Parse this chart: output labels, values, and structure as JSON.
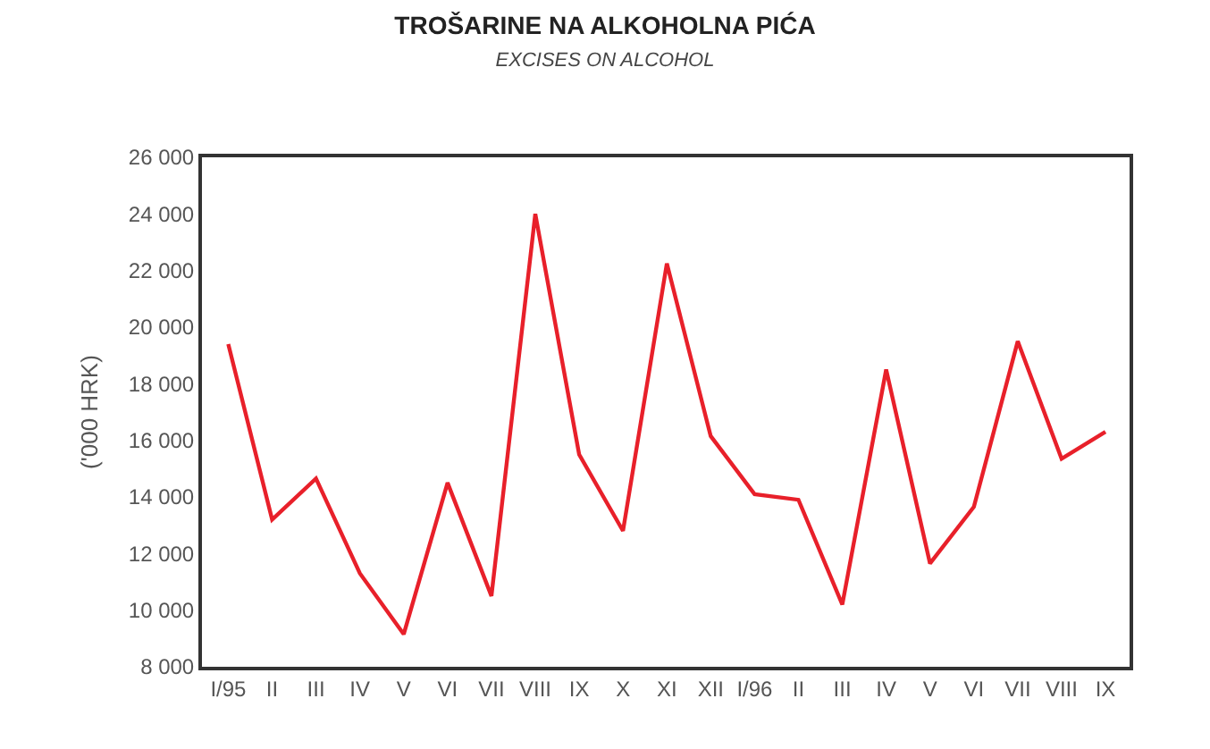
{
  "chart_data": {
    "type": "line",
    "title": "TROŠARINE NA ALKOHOLNA PIĆA",
    "subtitle": "EXCISES ON ALCOHOL",
    "ylabel": "('000 HRK)",
    "categories": [
      "I/95",
      "II",
      "III",
      "IV",
      "V",
      "VI",
      "VII",
      "VIII",
      "IX",
      "X",
      "XI",
      "XII",
      "I/96",
      "II",
      "III",
      "IV",
      "V",
      "VI",
      "VII",
      "VIII",
      "IX"
    ],
    "series": [
      {
        "color": "#e8202a",
        "values": [
          19400,
          13200,
          14650,
          11300,
          9150,
          14500,
          10500,
          24000,
          15500,
          12800,
          22250,
          16150,
          14100,
          13900,
          10200,
          18500,
          11650,
          13650,
          19500,
          15350,
          16300
        ]
      }
    ],
    "ylim": [
      8000,
      26000
    ],
    "yticks": [
      {
        "value": 8000,
        "label": "8 000"
      },
      {
        "value": 10000,
        "label": "10 000"
      },
      {
        "value": 12000,
        "label": "12 000"
      },
      {
        "value": 14000,
        "label": "14 000"
      },
      {
        "value": 16000,
        "label": "16 000"
      },
      {
        "value": 18000,
        "label": "18 000"
      },
      {
        "value": 20000,
        "label": "20 000"
      },
      {
        "value": 22000,
        "label": "22 000"
      },
      {
        "value": 24000,
        "label": "24 000"
      },
      {
        "value": 26000,
        "label": "26 000"
      }
    ],
    "marker": "none",
    "line_style": "solid"
  }
}
